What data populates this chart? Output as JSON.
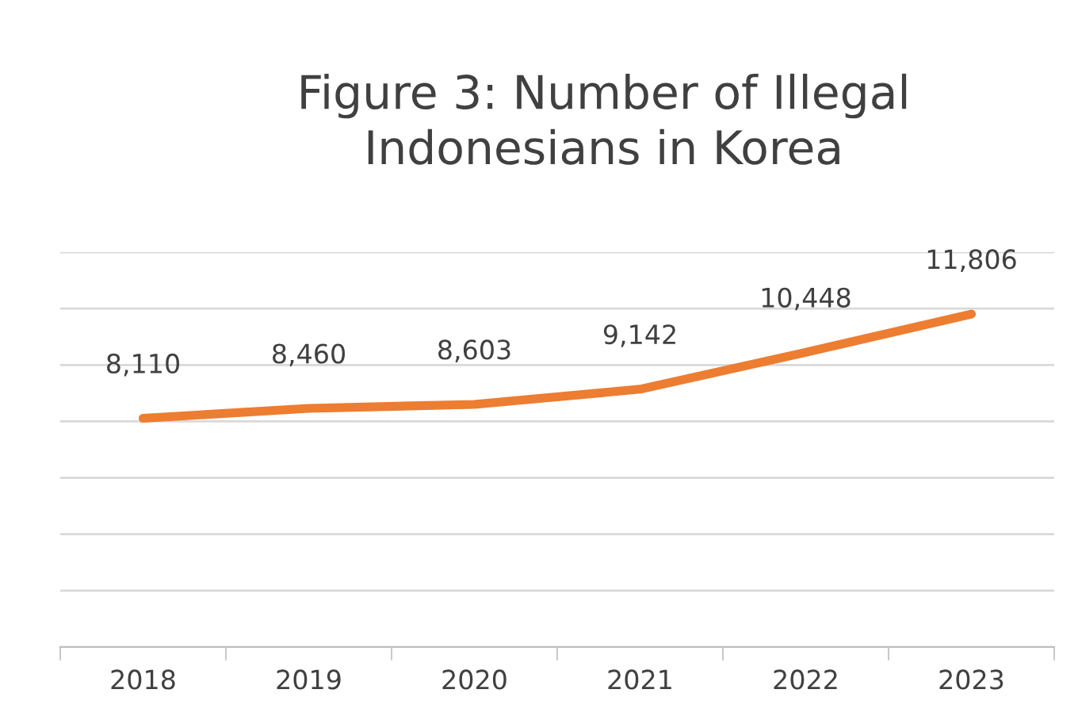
{
  "chart_data": {
    "type": "line",
    "title": "Figure 3: Number of Illegal\nIndonesians in Korea",
    "categories": [
      "2018",
      "2019",
      "2020",
      "2021",
      "2022",
      "2023"
    ],
    "series": [
      {
        "color": "#ed7d31",
        "values": [
          8110,
          8460,
          8603,
          9142,
          10448,
          11806
        ],
        "value_labels": [
          "8,110",
          "8,460",
          "8,603",
          "9,142",
          "10,448",
          "11,806"
        ]
      }
    ],
    "ylim": [
      0,
      14000
    ],
    "yticks": [
      {
        "value": 0,
        "label": null
      },
      {
        "value": 2000,
        "label": null
      },
      {
        "value": 4000,
        "label": null
      },
      {
        "value": 6000,
        "label": null
      },
      {
        "value": 8000,
        "label": null
      },
      {
        "value": 10000,
        "label": null
      },
      {
        "value": 12000,
        "label": null
      },
      {
        "value": 14000,
        "label": null
      }
    ],
    "tick_labels": "x",
    "grid": "y",
    "marker": "none",
    "line_style": "solid",
    "legend": false
  }
}
